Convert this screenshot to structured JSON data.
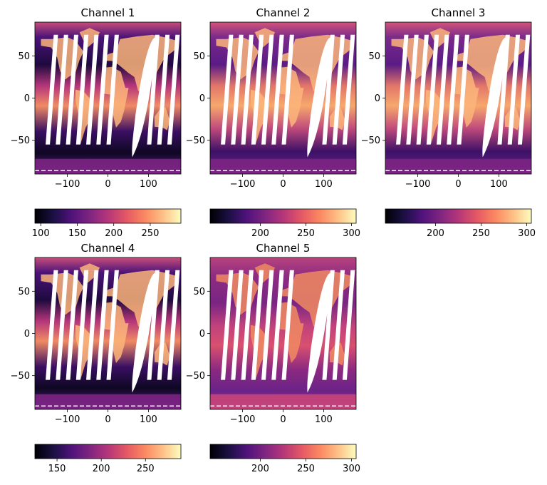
{
  "figure": {
    "colormap": "magma",
    "background": "#ffffff"
  },
  "chart_data": [
    {
      "type": "heatmap",
      "title": "Channel 1",
      "xlim": [
        -180,
        180
      ],
      "ylim": [
        -90,
        90
      ],
      "xticks": [
        "−100",
        "0",
        "100"
      ],
      "yticks": [
        "50",
        "0",
        "−50"
      ],
      "colorbar": {
        "vmin": 92,
        "vmax": 292,
        "ticks": [
          100,
          150,
          200,
          250
        ]
      }
    },
    {
      "type": "heatmap",
      "title": "Channel 2",
      "xlim": [
        -180,
        180
      ],
      "ylim": [
        -90,
        90
      ],
      "xticks": [
        "−100",
        "0",
        "100"
      ],
      "yticks": [
        "50",
        "0",
        "−50"
      ],
      "colorbar": {
        "vmin": 145,
        "vmax": 305,
        "ticks": [
          200,
          250,
          300
        ]
      }
    },
    {
      "type": "heatmap",
      "title": "Channel 3",
      "xlim": [
        -180,
        180
      ],
      "ylim": [
        -90,
        90
      ],
      "xticks": [
        "−100",
        "0",
        "100"
      ],
      "yticks": [
        "50",
        "0",
        "−50"
      ],
      "colorbar": {
        "vmin": 145,
        "vmax": 305,
        "ticks": [
          200,
          250,
          300
        ]
      }
    },
    {
      "type": "heatmap",
      "title": "Channel 4",
      "xlim": [
        -180,
        180
      ],
      "ylim": [
        -90,
        90
      ],
      "xticks": [
        "−100",
        "0",
        "100"
      ],
      "yticks": [
        "50",
        "0",
        "−50"
      ],
      "colorbar": {
        "vmin": 125,
        "vmax": 290,
        "ticks": [
          150,
          200,
          250
        ]
      }
    },
    {
      "type": "heatmap",
      "title": "Channel 5",
      "xlim": [
        -180,
        180
      ],
      "ylim": [
        -90,
        90
      ],
      "xticks": [
        "−100",
        "0",
        "100"
      ],
      "yticks": [
        "50",
        "0",
        "−50"
      ],
      "colorbar": {
        "vmin": 145,
        "vmax": 305,
        "ticks": [
          200,
          250,
          300
        ]
      }
    }
  ]
}
